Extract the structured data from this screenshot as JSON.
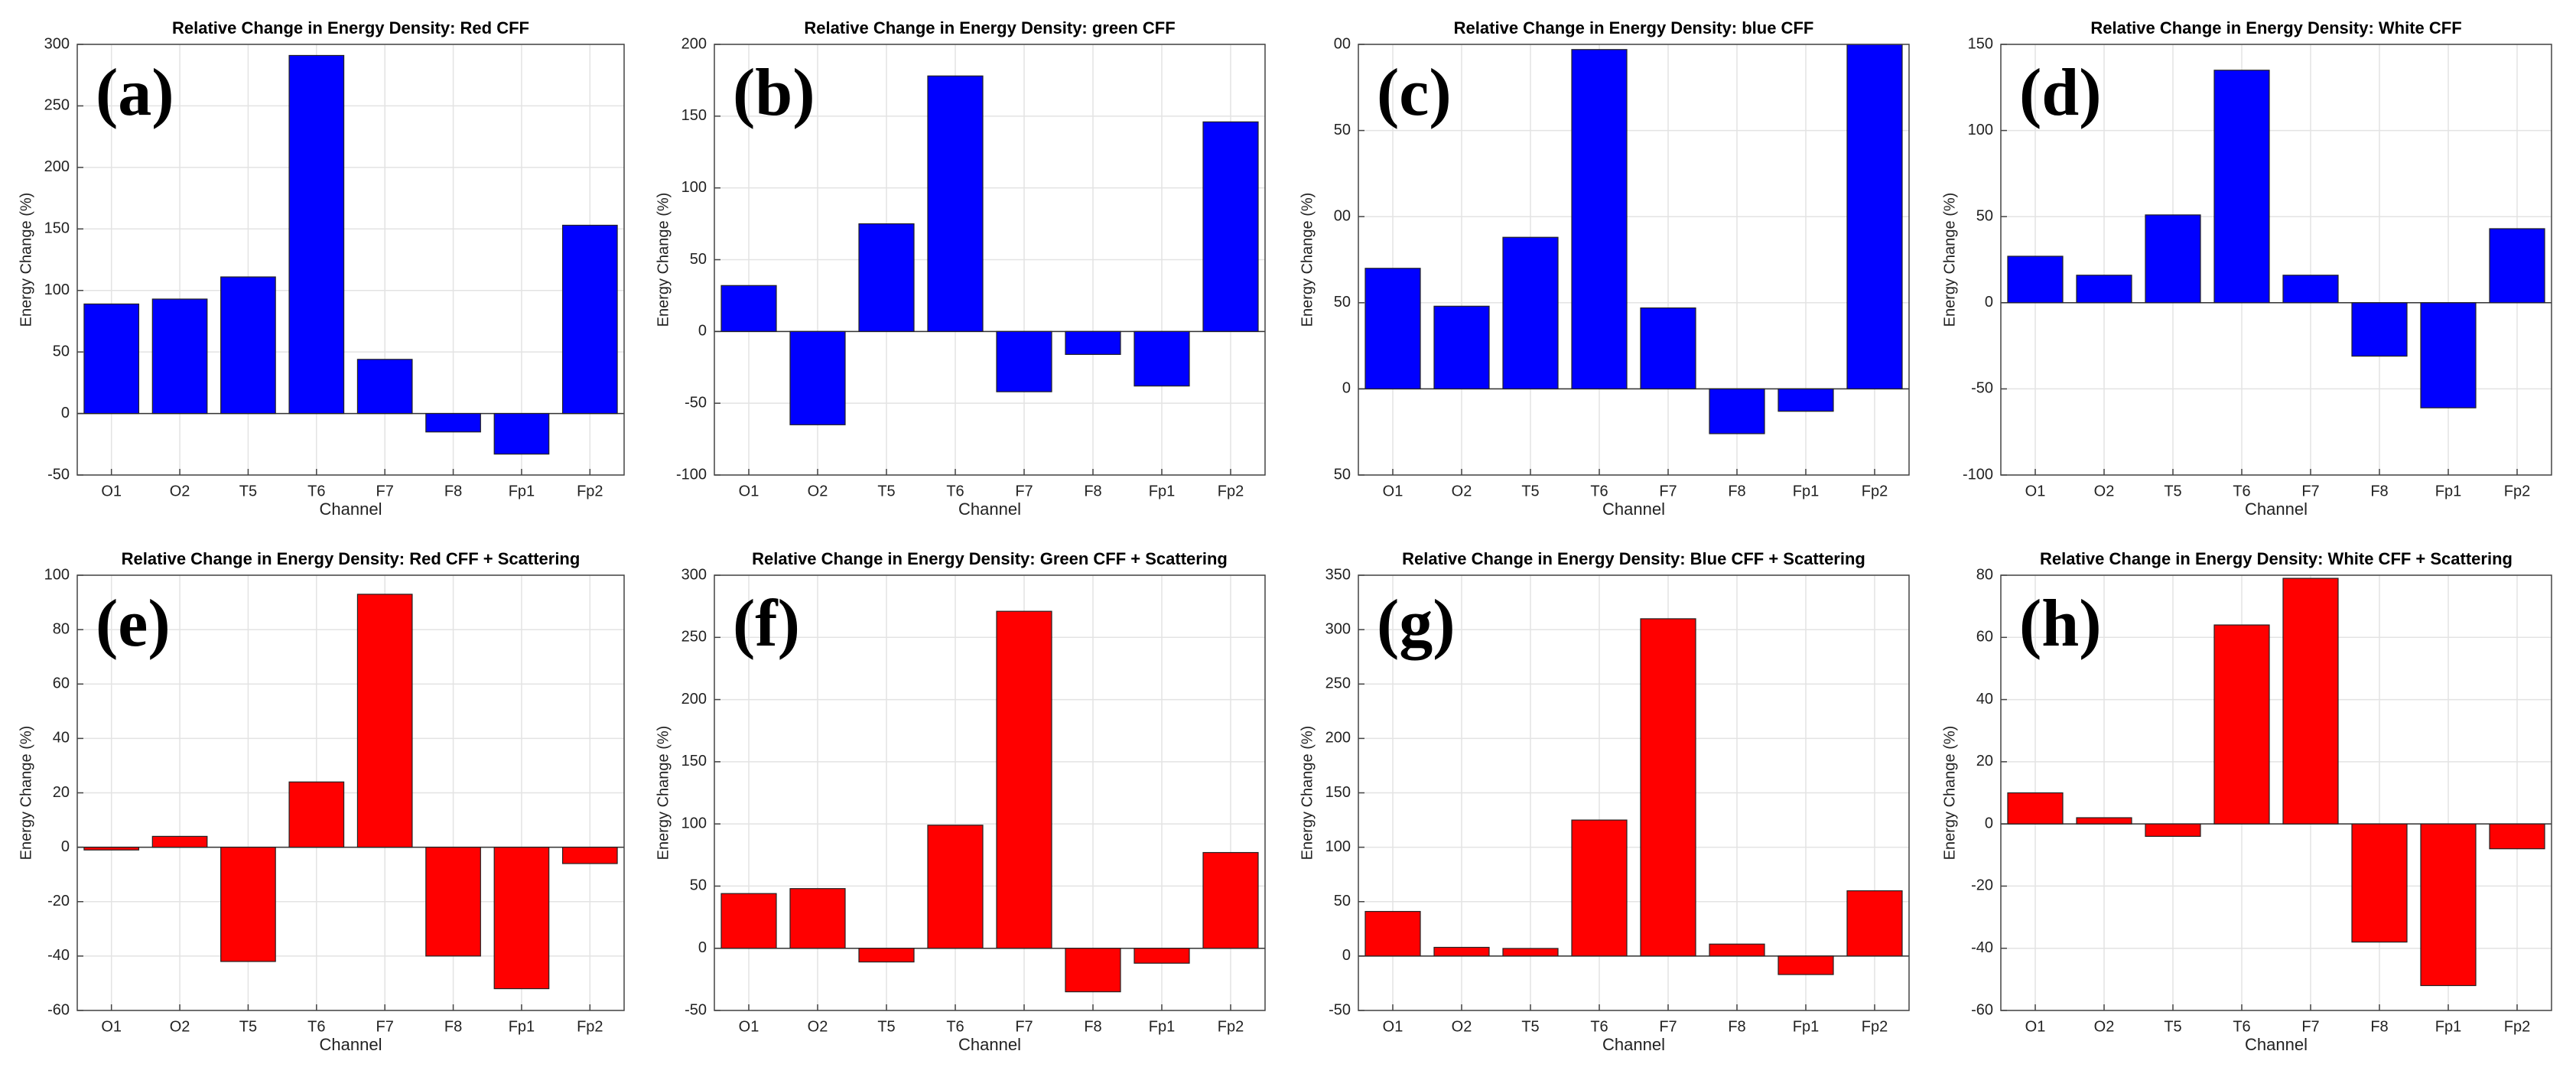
{
  "chart_data": [
    {
      "type": "bar",
      "label": "(a)",
      "title": "Relative Change in Energy Density: Red CFF",
      "xlabel": "Channel",
      "ylabel": "Energy Change (%)",
      "categories": [
        "O1",
        "O2",
        "T5",
        "T6",
        "F7",
        "F8",
        "Fp1",
        "Fp2"
      ],
      "values": [
        89,
        93,
        111,
        291,
        44,
        -15,
        -33,
        153
      ],
      "color": "#0000ff",
      "ylim": [
        -50,
        300
      ],
      "yticks": [
        -50,
        0,
        50,
        100,
        150,
        200,
        250,
        300
      ],
      "grid": true
    },
    {
      "type": "bar",
      "label": "(b)",
      "title": "Relative Change in Energy Density: green CFF",
      "xlabel": "Channel",
      "ylabel": "Energy Change (%)",
      "categories": [
        "O1",
        "O2",
        "T5",
        "T6",
        "F7",
        "F8",
        "Fp1",
        "Fp2"
      ],
      "values": [
        32,
        -65,
        75,
        178,
        -42,
        -16,
        -38,
        146
      ],
      "color": "#0000ff",
      "ylim": [
        -100,
        200
      ],
      "yticks": [
        -100,
        -50,
        0,
        50,
        100,
        150,
        200
      ],
      "grid": true
    },
    {
      "type": "bar",
      "label": "(c)",
      "title": "Relative Change in Energy Density: blue CFF",
      "xlabel": "Channel",
      "ylabel": "Energy Change (%)",
      "categories": [
        "O1",
        "O2",
        "T5",
        "T6",
        "F7",
        "F8",
        "Fp1",
        "Fp2"
      ],
      "values": [
        70,
        48,
        88,
        197,
        47,
        -26,
        -13,
        200
      ],
      "color": "#0000ff",
      "ylim": [
        -50,
        200
      ],
      "yticks": [
        {
          "value": -50,
          "label": "50"
        },
        0,
        50,
        {
          "value": 100,
          "label": "00"
        },
        {
          "value": 150,
          "label": "50"
        },
        {
          "value": 200,
          "label": "00"
        }
      ],
      "grid": true
    },
    {
      "type": "bar",
      "label": "(d)",
      "title": "Relative Change in Energy Density: White CFF",
      "xlabel": "Channel",
      "ylabel": "Energy Change (%)",
      "categories": [
        "O1",
        "O2",
        "T5",
        "T6",
        "F7",
        "F8",
        "Fp1",
        "Fp2"
      ],
      "values": [
        27,
        16,
        51,
        135,
        16,
        -31,
        -61,
        43
      ],
      "color": "#0000ff",
      "ylim": [
        -100,
        150
      ],
      "yticks": [
        -100,
        -50,
        0,
        50,
        100,
        150
      ],
      "grid": true
    },
    {
      "type": "bar",
      "label": "(e)",
      "title": "Relative Change in Energy Density: Red CFF + Scattering",
      "xlabel": "Channel",
      "ylabel": "Energy Change (%)",
      "categories": [
        "O1",
        "O2",
        "T5",
        "T6",
        "F7",
        "F8",
        "Fp1",
        "Fp2"
      ],
      "values": [
        -1,
        4,
        -42,
        24,
        93,
        -40,
        -52,
        -6
      ],
      "color": "#ff0000",
      "ylim": [
        -60,
        100
      ],
      "yticks": [
        -60,
        -40,
        -20,
        0,
        20,
        40,
        60,
        80,
        100
      ],
      "grid": true
    },
    {
      "type": "bar",
      "label": "(f)",
      "title": "Relative Change in Energy Density: Green CFF + Scattering",
      "xlabel": "Channel",
      "ylabel": "Energy Change (%)",
      "categories": [
        "O1",
        "O2",
        "T5",
        "T6",
        "F7",
        "F8",
        "Fp1",
        "Fp2"
      ],
      "values": [
        44,
        48,
        -11,
        99,
        271,
        -35,
        -12,
        77
      ],
      "color": "#ff0000",
      "ylim": [
        -50,
        300
      ],
      "yticks": [
        -50,
        0,
        50,
        100,
        150,
        200,
        250,
        300
      ],
      "grid": true
    },
    {
      "type": "bar",
      "label": "(g)",
      "title": "Relative Change in Energy Density: Blue CFF + Scattering",
      "xlabel": "Channel",
      "ylabel": "Energy Change (%)",
      "categories": [
        "O1",
        "O2",
        "T5",
        "T6",
        "F7",
        "F8",
        "Fp1",
        "Fp2"
      ],
      "values": [
        41,
        8,
        7,
        125,
        310,
        11,
        -17,
        60
      ],
      "color": "#ff0000",
      "ylim": [
        -50,
        350
      ],
      "yticks": [
        -50,
        0,
        50,
        100,
        150,
        200,
        250,
        300,
        350
      ],
      "grid": true
    },
    {
      "type": "bar",
      "label": "(h)",
      "title": "Relative Change in Energy Density: White CFF + Scattering",
      "xlabel": "Channel",
      "ylabel": "Energy Change (%)",
      "categories": [
        "O1",
        "O2",
        "T5",
        "T6",
        "F7",
        "F8",
        "Fp1",
        "Fp2"
      ],
      "values": [
        10,
        2,
        -4,
        64,
        79,
        -38,
        -52,
        -8
      ],
      "color": "#ff0000",
      "ylim": [
        -60,
        80
      ],
      "yticks": [
        -60,
        -40,
        -20,
        0,
        20,
        40,
        60,
        80
      ],
      "grid": true
    }
  ]
}
